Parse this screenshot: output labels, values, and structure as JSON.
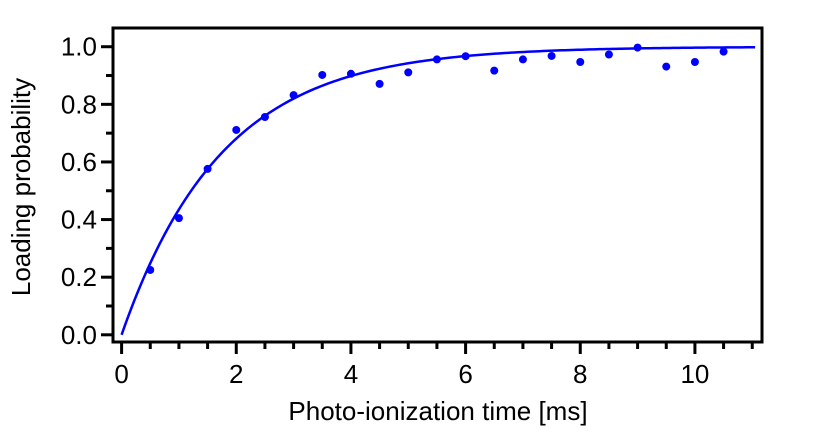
{
  "chart_data": {
    "type": "scatter",
    "title": "",
    "xlabel": "Photo-ionization time [ms]",
    "ylabel": "Loading probability",
    "xlim": [
      -0.15,
      11.17
    ],
    "ylim": [
      -0.025,
      1.065
    ],
    "xticks": [
      0,
      2,
      4,
      6,
      8,
      10
    ],
    "xtick_labels": [
      "0",
      "2",
      "4",
      "6",
      "8",
      "10"
    ],
    "yticks": [
      0.0,
      0.2,
      0.4,
      0.6,
      0.8,
      1.0
    ],
    "ytick_labels": [
      "0.0",
      "0.2",
      "0.4",
      "0.6",
      "0.8",
      "1.0"
    ],
    "grid": false,
    "color": "#0000ff",
    "series": [
      {
        "type": "scatter",
        "x": [
          0.5,
          1.0,
          1.5,
          2.0,
          2.5,
          3.0,
          3.5,
          4.0,
          4.5,
          5.0,
          5.5,
          6.0,
          6.5,
          7.0,
          7.5,
          8.0,
          8.5,
          9.0,
          9.5,
          10.0,
          10.5
        ],
        "y": [
          0.225,
          0.405,
          0.576,
          0.711,
          0.756,
          0.832,
          0.902,
          0.906,
          0.871,
          0.911,
          0.956,
          0.967,
          0.917,
          0.956,
          0.968,
          0.947,
          0.973,
          0.997,
          0.931,
          0.947,
          0.983
        ]
      },
      {
        "type": "line",
        "model": "1 - exp(-t/tau)",
        "tau": 1.75,
        "x_range": [
          0,
          11.05
        ]
      }
    ]
  }
}
